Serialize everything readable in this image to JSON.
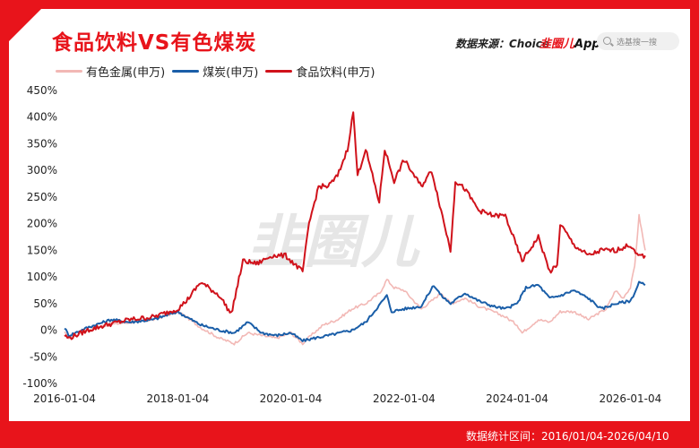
{
  "header": {
    "title": "食品饮料VS有色煤炭",
    "source": "数据来源：Choice",
    "brand_prefix": "韭圈儿",
    "brand_suffix": "App",
    "search_placeholder": "选基搜一搜"
  },
  "footer": {
    "period": "数据统计区间：2016/01/04-2026/04/10"
  },
  "watermark": "韭圈儿",
  "chart_data": {
    "type": "line",
    "y_unit": "%",
    "ylim": [
      -100,
      450
    ],
    "y_ticks": [
      -100,
      -50,
      0,
      50,
      100,
      150,
      200,
      250,
      300,
      350,
      400,
      450
    ],
    "y_tick_labels": [
      "-100%",
      "-50%",
      "0%",
      "50%",
      "100%",
      "150%",
      "200%",
      "250%",
      "300%",
      "350%",
      "400%",
      "450%"
    ],
    "xlim": [
      "2016-01-04",
      "2026-04-10"
    ],
    "x_ticks": [
      "2016-01-04",
      "2018-01-04",
      "2020-01-04",
      "2022-01-04",
      "2024-01-04",
      "2026-01-04"
    ],
    "grid": false,
    "legend_position": "top-left",
    "series": [
      {
        "name": "有色金属(申万)",
        "color": "#f2b8b5",
        "x": [
          "2016-01-04",
          "2016-02-01",
          "2016-06-01",
          "2016-10-01",
          "2017-03-01",
          "2017-08-01",
          "2018-01-04",
          "2018-03-01",
          "2018-06-01",
          "2018-10-01",
          "2019-01-04",
          "2019-04-01",
          "2019-07-01",
          "2019-10-01",
          "2020-01-04",
          "2020-03-20",
          "2020-06-01",
          "2020-08-01",
          "2020-11-01",
          "2021-02-01",
          "2021-05-01",
          "2021-08-01",
          "2021-09-15",
          "2021-11-01",
          "2022-01-04",
          "2022-04-25",
          "2022-07-01",
          "2022-09-01",
          "2022-11-01",
          "2023-02-01",
          "2023-05-01",
          "2023-08-01",
          "2023-10-20",
          "2024-01-04",
          "2024-02-05",
          "2024-05-20",
          "2024-08-01",
          "2024-10-08",
          "2025-01-04",
          "2025-04-08",
          "2025-06-01",
          "2025-08-01",
          "2025-10-01",
          "2025-11-15",
          "2026-01-04",
          "2026-02-01",
          "2026-03-01",
          "2026-04-10"
        ],
        "y": [
          -5,
          -15,
          0,
          10,
          15,
          20,
          35,
          25,
          5,
          -15,
          -25,
          -5,
          -10,
          -15,
          -5,
          -25,
          -5,
          10,
          20,
          40,
          50,
          70,
          95,
          80,
          75,
          40,
          55,
          70,
          50,
          60,
          45,
          35,
          25,
          10,
          -5,
          20,
          15,
          35,
          35,
          20,
          30,
          40,
          75,
          60,
          80,
          120,
          215,
          150
        ]
      },
      {
        "name": "煤炭(申万)",
        "color": "#1a5ea8",
        "x": [
          "2016-01-04",
          "2016-02-01",
          "2016-06-01",
          "2016-11-01",
          "2017-03-01",
          "2017-08-01",
          "2018-01-04",
          "2018-03-01",
          "2018-06-01",
          "2018-10-01",
          "2019-01-04",
          "2019-04-01",
          "2019-07-01",
          "2019-10-01",
          "2020-01-04",
          "2020-03-20",
          "2020-06-01",
          "2020-09-01",
          "2021-02-01",
          "2021-05-01",
          "2021-09-15",
          "2021-10-15",
          "2022-01-04",
          "2022-04-25",
          "2022-07-15",
          "2022-09-01",
          "2022-11-01",
          "2023-02-01",
          "2023-05-01",
          "2023-08-01",
          "2023-10-20",
          "2024-01-04",
          "2024-03-01",
          "2024-05-20",
          "2024-08-01",
          "2024-10-08",
          "2025-01-04",
          "2025-04-08",
          "2025-07-01",
          "2025-10-01",
          "2026-01-04",
          "2026-02-01",
          "2026-03-01",
          "2026-04-10"
        ],
        "y": [
          5,
          -10,
          5,
          20,
          15,
          20,
          35,
          25,
          10,
          0,
          -5,
          15,
          -5,
          -10,
          -5,
          -20,
          -15,
          -10,
          0,
          15,
          65,
          35,
          40,
          45,
          85,
          65,
          50,
          70,
          55,
          45,
          40,
          50,
          80,
          85,
          60,
          65,
          75,
          60,
          40,
          50,
          55,
          70,
          90,
          85
        ]
      },
      {
        "name": "食品饮料(申万)",
        "color": "#d0121b",
        "x": [
          "2016-01-04",
          "2016-02-01",
          "2016-06-01",
          "2016-10-01",
          "2017-03-01",
          "2017-08-01",
          "2018-01-04",
          "2018-03-01",
          "2018-06-01",
          "2018-10-01",
          "2018-12-15",
          "2019-03-01",
          "2019-06-01",
          "2019-09-01",
          "2019-12-01",
          "2020-03-20",
          "2020-05-01",
          "2020-07-01",
          "2020-09-01",
          "2020-11-01",
          "2021-01-04",
          "2021-02-10",
          "2021-03-10",
          "2021-05-01",
          "2021-07-28",
          "2021-09-01",
          "2021-11-01",
          "2022-01-04",
          "2022-04-25",
          "2022-07-01",
          "2022-10-31",
          "2022-12-01",
          "2023-02-01",
          "2023-05-01",
          "2023-08-01",
          "2023-10-20",
          "2024-01-04",
          "2024-02-05",
          "2024-05-20",
          "2024-08-01",
          "2024-09-18",
          "2024-10-08",
          "2025-01-04",
          "2025-04-08",
          "2025-07-01",
          "2025-10-01",
          "2026-01-04",
          "2026-02-15",
          "2026-04-10"
        ],
        "y": [
          -10,
          -15,
          0,
          10,
          20,
          25,
          40,
          55,
          90,
          65,
          30,
          130,
          125,
          140,
          140,
          110,
          200,
          270,
          270,
          290,
          340,
          410,
          290,
          340,
          240,
          340,
          280,
          320,
          270,
          300,
          150,
          280,
          265,
          225,
          215,
          215,
          155,
          130,
          175,
          110,
          120,
          200,
          160,
          140,
          150,
          150,
          160,
          140,
          140
        ]
      }
    ]
  }
}
